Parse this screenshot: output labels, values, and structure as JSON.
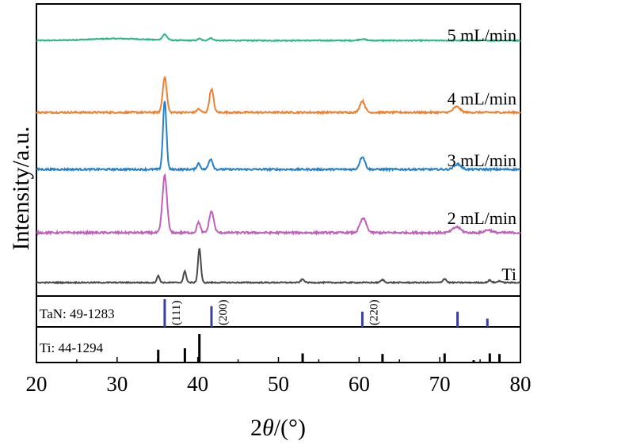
{
  "chart_data": {
    "type": "line",
    "xlabel_prefix": "2",
    "xlabel_symbol": "θ",
    "xlabel_suffix": "/(°)",
    "ylabel": "Intensity/a.u.",
    "xlim": [
      20,
      80
    ],
    "x_ticks": [
      "20",
      "30",
      "40",
      "50",
      "60",
      "70",
      "80"
    ],
    "series": [
      {
        "name": "5 mL/min",
        "color": "#2fb48a",
        "baseline": 0.18,
        "noise": 0.01,
        "peaks": [
          {
            "x": 35.9,
            "h": 0.12,
            "w": 0.4
          },
          {
            "x": 40.2,
            "h": 0.04,
            "w": 0.3
          },
          {
            "x": 41.6,
            "h": 0.05,
            "w": 0.4
          },
          {
            "x": 60.4,
            "h": 0.03,
            "w": 0.6
          },
          {
            "x": 30.0,
            "h": 0.04,
            "w": 5.0
          }
        ]
      },
      {
        "name": "4 mL/min",
        "color": "#f08030",
        "baseline": 0.0,
        "noise": 0.012,
        "peaks": [
          {
            "x": 35.9,
            "h": 0.5,
            "w": 0.35
          },
          {
            "x": 40.1,
            "h": 0.05,
            "w": 0.3
          },
          {
            "x": 41.7,
            "h": 0.33,
            "w": 0.35
          },
          {
            "x": 60.4,
            "h": 0.16,
            "w": 0.45
          },
          {
            "x": 72.1,
            "h": 0.08,
            "w": 0.6
          }
        ]
      },
      {
        "name": "3 mL/min",
        "color": "#2880c8",
        "baseline": 0.0,
        "noise": 0.012,
        "peaks": [
          {
            "x": 35.9,
            "h": 0.92,
            "w": 0.3
          },
          {
            "x": 40.1,
            "h": 0.08,
            "w": 0.3
          },
          {
            "x": 41.6,
            "h": 0.14,
            "w": 0.35
          },
          {
            "x": 60.4,
            "h": 0.17,
            "w": 0.45
          },
          {
            "x": 72.2,
            "h": 0.07,
            "w": 0.6
          }
        ]
      },
      {
        "name": "2 mL/min",
        "color": "#c060b8",
        "baseline": 0.0,
        "noise": 0.014,
        "peaks": [
          {
            "x": 35.9,
            "h": 0.8,
            "w": 0.4
          },
          {
            "x": 40.1,
            "h": 0.15,
            "w": 0.3
          },
          {
            "x": 41.7,
            "h": 0.3,
            "w": 0.4
          },
          {
            "x": 60.5,
            "h": 0.2,
            "w": 0.55
          },
          {
            "x": 72.1,
            "h": 0.08,
            "w": 0.7
          },
          {
            "x": 76.0,
            "h": 0.04,
            "w": 0.6
          }
        ]
      },
      {
        "name": "Ti",
        "color": "#4a4a4a",
        "baseline": 0.0,
        "noise": 0.01,
        "peaks": [
          {
            "x": 35.1,
            "h": 0.12,
            "w": 0.25
          },
          {
            "x": 38.4,
            "h": 0.2,
            "w": 0.25
          },
          {
            "x": 40.2,
            "h": 0.62,
            "w": 0.25
          },
          {
            "x": 53.0,
            "h": 0.06,
            "w": 0.3
          },
          {
            "x": 62.9,
            "h": 0.05,
            "w": 0.3
          },
          {
            "x": 70.6,
            "h": 0.07,
            "w": 0.3
          },
          {
            "x": 76.2,
            "h": 0.04,
            "w": 0.3
          },
          {
            "x": 77.4,
            "h": 0.03,
            "w": 0.3
          }
        ]
      }
    ],
    "references": [
      {
        "label": "TaN: 49-1283",
        "color": "#3a3fa0",
        "lines": [
          {
            "x": 35.9,
            "h": 1.0,
            "hkl": "(111)"
          },
          {
            "x": 41.7,
            "h": 0.75,
            "hkl": "(200)"
          },
          {
            "x": 60.4,
            "h": 0.55,
            "hkl": "(220)"
          },
          {
            "x": 72.2,
            "h": 0.55,
            "hkl": ""
          },
          {
            "x": 75.9,
            "h": 0.3,
            "hkl": ""
          }
        ]
      },
      {
        "label": "Ti: 44-1294",
        "color": "#000000",
        "lines": [
          {
            "x": 35.1,
            "h": 0.45
          },
          {
            "x": 38.4,
            "h": 0.5
          },
          {
            "x": 40.2,
            "h": 1.0
          },
          {
            "x": 53.0,
            "h": 0.32
          },
          {
            "x": 62.9,
            "h": 0.3
          },
          {
            "x": 70.6,
            "h": 0.32
          },
          {
            "x": 74.2,
            "h": 0.08
          },
          {
            "x": 76.2,
            "h": 0.32
          },
          {
            "x": 77.4,
            "h": 0.3
          }
        ]
      }
    ]
  }
}
